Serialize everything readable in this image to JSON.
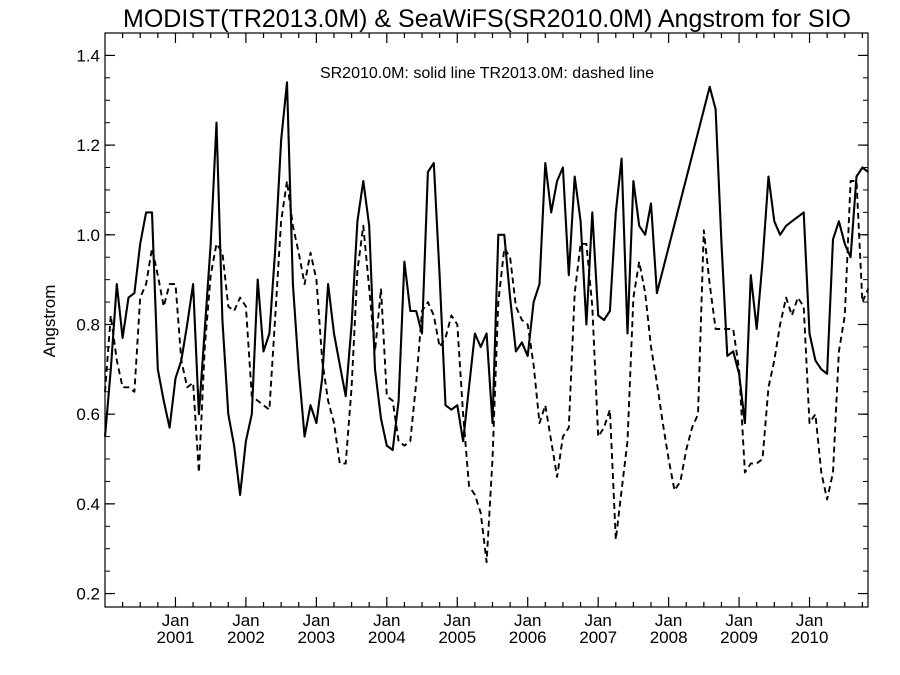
{
  "chart_data": {
    "type": "line",
    "title": "MODIST(TR2013.0M) & SeaWiFS(SR2010.0M)  Angstrom for SIO",
    "ylabel": "Angstrom",
    "xlabel": "",
    "legend_text": "SR2010.0M: solid line   TR2013.0M: dashed line",
    "legend_position": "top-center",
    "ylim": [
      0.17,
      1.45
    ],
    "xlim": [
      2000.0,
      2010.83
    ],
    "yticks": [
      {
        "value": 0.2,
        "label": "0.2"
      },
      {
        "value": 0.4,
        "label": "0.4"
      },
      {
        "value": 0.6,
        "label": "0.6"
      },
      {
        "value": 0.8,
        "label": "0.8"
      },
      {
        "value": 1.0,
        "label": "1.0"
      },
      {
        "value": 1.2,
        "label": "1.2"
      },
      {
        "value": 1.4,
        "label": "1.4"
      }
    ],
    "xticks": [
      {
        "value": 2001.0,
        "month": "Jan",
        "year": "2001"
      },
      {
        "value": 2002.0,
        "month": "Jan",
        "year": "2002"
      },
      {
        "value": 2003.0,
        "month": "Jan",
        "year": "2003"
      },
      {
        "value": 2004.0,
        "month": "Jan",
        "year": "2004"
      },
      {
        "value": 2005.0,
        "month": "Jan",
        "year": "2005"
      },
      {
        "value": 2006.0,
        "month": "Jan",
        "year": "2006"
      },
      {
        "value": 2007.0,
        "month": "Jan",
        "year": "2007"
      },
      {
        "value": 2008.0,
        "month": "Jan",
        "year": "2008"
      },
      {
        "value": 2009.0,
        "month": "Jan",
        "year": "2009"
      },
      {
        "value": 2010.0,
        "month": "Jan",
        "year": "2010"
      }
    ],
    "grid": false,
    "series": [
      {
        "name": "SR2010.0M",
        "style": "solid",
        "x": [
          2000.0,
          2000.083,
          2000.167,
          2000.25,
          2000.333,
          2000.417,
          2000.5,
          2000.583,
          2000.667,
          2000.75,
          2000.833,
          2000.917,
          2001.0,
          2001.083,
          2001.167,
          2001.25,
          2001.333,
          2001.417,
          2001.5,
          2001.583,
          2001.667,
          2001.75,
          2001.833,
          2001.917,
          2002.0,
          2002.083,
          2002.167,
          2002.25,
          2002.333,
          2002.417,
          2002.5,
          2002.583,
          2002.667,
          2002.75,
          2002.833,
          2002.917,
          2003.0,
          2003.083,
          2003.167,
          2003.25,
          2003.333,
          2003.417,
          2003.5,
          2003.583,
          2003.667,
          2003.75,
          2003.833,
          2003.917,
          2004.0,
          2004.083,
          2004.167,
          2004.25,
          2004.333,
          2004.417,
          2004.5,
          2004.583,
          2004.667,
          2004.75,
          2004.833,
          2004.917,
          2005.0,
          2005.083,
          2005.167,
          2005.25,
          2005.333,
          2005.417,
          2005.5,
          2005.583,
          2005.667,
          2005.75,
          2005.833,
          2005.917,
          2006.0,
          2006.083,
          2006.167,
          2006.25,
          2006.333,
          2006.417,
          2006.5,
          2006.583,
          2006.667,
          2006.75,
          2006.833,
          2006.917,
          2007.0,
          2007.083,
          2007.167,
          2007.25,
          2007.333,
          2007.417,
          2007.5,
          2007.583,
          2007.667,
          2007.75,
          2007.833,
          2008.583,
          2008.667,
          2008.75,
          2008.833,
          2008.917,
          2009.0,
          2009.083,
          2009.167,
          2009.25,
          2009.333,
          2009.417,
          2009.5,
          2009.583,
          2009.667,
          2009.75,
          2009.833,
          2009.917,
          2010.0,
          2010.083,
          2010.167,
          2010.25,
          2010.333,
          2010.417,
          2010.5,
          2010.583,
          2010.667,
          2010.75,
          2010.833
        ],
        "y": [
          0.55,
          0.7,
          0.89,
          0.77,
          0.86,
          0.87,
          0.98,
          1.05,
          1.05,
          0.7,
          0.63,
          0.57,
          0.68,
          0.72,
          0.8,
          0.89,
          0.6,
          0.79,
          0.98,
          1.25,
          0.81,
          0.6,
          0.53,
          0.42,
          0.54,
          0.6,
          0.9,
          0.74,
          0.78,
          0.97,
          1.21,
          1.34,
          0.89,
          0.7,
          0.55,
          0.62,
          0.58,
          0.68,
          0.89,
          0.78,
          0.71,
          0.64,
          0.8,
          1.03,
          1.12,
          1.02,
          0.7,
          0.59,
          0.53,
          0.52,
          0.63,
          0.94,
          0.83,
          0.83,
          0.78,
          1.14,
          1.16,
          0.91,
          0.62,
          0.61,
          0.62,
          0.54,
          0.66,
          0.78,
          0.75,
          0.78,
          0.58,
          1.0,
          1.0,
          0.86,
          0.74,
          0.76,
          0.73,
          0.85,
          0.89,
          1.16,
          1.05,
          1.12,
          1.15,
          0.91,
          1.13,
          1.03,
          0.8,
          1.05,
          0.82,
          0.81,
          0.83,
          1.05,
          1.17,
          0.78,
          1.12,
          1.02,
          1.0,
          1.07,
          0.87,
          1.33,
          1.28,
          0.98,
          0.73,
          0.74,
          0.69,
          0.58,
          0.91,
          0.79,
          0.94,
          1.13,
          1.03,
          1.0,
          1.02,
          1.03,
          1.04,
          1.05,
          0.78,
          0.72,
          0.7,
          0.69,
          0.99,
          1.03,
          0.98,
          0.95,
          1.13,
          1.15,
          1.14
        ]
      },
      {
        "name": "TR2013.0M",
        "style": "dashed",
        "x": [
          2000.0,
          2000.083,
          2000.167,
          2000.25,
          2000.333,
          2000.417,
          2000.5,
          2000.583,
          2000.667,
          2000.75,
          2000.833,
          2000.917,
          2001.0,
          2001.083,
          2001.167,
          2001.25,
          2001.333,
          2001.417,
          2001.5,
          2001.583,
          2001.667,
          2001.75,
          2001.833,
          2001.917,
          2002.0,
          2002.083,
          2002.167,
          2002.25,
          2002.333,
          2002.417,
          2002.5,
          2002.583,
          2002.667,
          2002.75,
          2002.833,
          2002.917,
          2003.0,
          2003.083,
          2003.167,
          2003.25,
          2003.333,
          2003.417,
          2003.5,
          2003.583,
          2003.667,
          2003.75,
          2003.833,
          2003.917,
          2004.0,
          2004.083,
          2004.167,
          2004.25,
          2004.333,
          2004.417,
          2004.5,
          2004.583,
          2004.667,
          2004.75,
          2004.833,
          2004.917,
          2005.0,
          2005.083,
          2005.167,
          2005.25,
          2005.333,
          2005.417,
          2005.5,
          2005.583,
          2005.667,
          2005.75,
          2005.833,
          2005.917,
          2006.0,
          2006.083,
          2006.167,
          2006.25,
          2006.333,
          2006.417,
          2006.5,
          2006.583,
          2006.667,
          2006.75,
          2006.833,
          2006.917,
          2007.0,
          2007.083,
          2007.167,
          2007.25,
          2007.333,
          2007.417,
          2007.5,
          2007.583,
          2007.667,
          2007.75,
          2007.833,
          2007.917,
          2008.0,
          2008.083,
          2008.167,
          2008.25,
          2008.333,
          2008.417,
          2008.5,
          2008.583,
          2008.667,
          2008.75,
          2008.833,
          2008.917,
          2009.0,
          2009.083,
          2009.167,
          2009.25,
          2009.333,
          2009.417,
          2009.5,
          2009.583,
          2009.667,
          2009.75,
          2009.833,
          2009.917,
          2010.0,
          2010.083,
          2010.167,
          2010.25,
          2010.333,
          2010.417,
          2010.5,
          2010.583,
          2010.667,
          2010.75,
          2010.833
        ],
        "y": [
          0.65,
          0.82,
          0.72,
          0.66,
          0.66,
          0.65,
          0.86,
          0.89,
          0.97,
          0.91,
          0.84,
          0.89,
          0.89,
          0.72,
          0.66,
          0.67,
          0.47,
          0.75,
          0.91,
          0.98,
          0.96,
          0.84,
          0.83,
          0.86,
          0.84,
          0.64,
          0.63,
          0.62,
          0.61,
          0.82,
          1.03,
          1.12,
          1.02,
          0.96,
          0.89,
          0.96,
          0.9,
          0.72,
          0.63,
          0.58,
          0.49,
          0.49,
          0.66,
          0.92,
          1.02,
          0.88,
          0.74,
          0.88,
          0.64,
          0.63,
          0.54,
          0.53,
          0.54,
          0.67,
          0.83,
          0.85,
          0.82,
          0.75,
          0.77,
          0.82,
          0.8,
          0.6,
          0.44,
          0.42,
          0.38,
          0.27,
          0.5,
          0.85,
          0.97,
          0.95,
          0.84,
          0.81,
          0.8,
          0.71,
          0.58,
          0.62,
          0.54,
          0.46,
          0.55,
          0.57,
          0.87,
          0.98,
          0.98,
          0.84,
          0.55,
          0.57,
          0.61,
          0.32,
          0.43,
          0.54,
          0.86,
          0.94,
          0.87,
          0.75,
          0.67,
          0.58,
          0.5,
          0.43,
          0.45,
          0.52,
          0.57,
          0.6,
          1.01,
          0.89,
          0.79,
          0.79,
          0.79,
          0.79,
          0.7,
          0.47,
          0.49,
          0.49,
          0.5,
          0.66,
          0.72,
          0.8,
          0.86,
          0.82,
          0.86,
          0.84,
          0.58,
          0.6,
          0.47,
          0.41,
          0.47,
          0.74,
          0.82,
          1.12,
          1.12,
          0.85,
          0.88
        ]
      }
    ]
  }
}
